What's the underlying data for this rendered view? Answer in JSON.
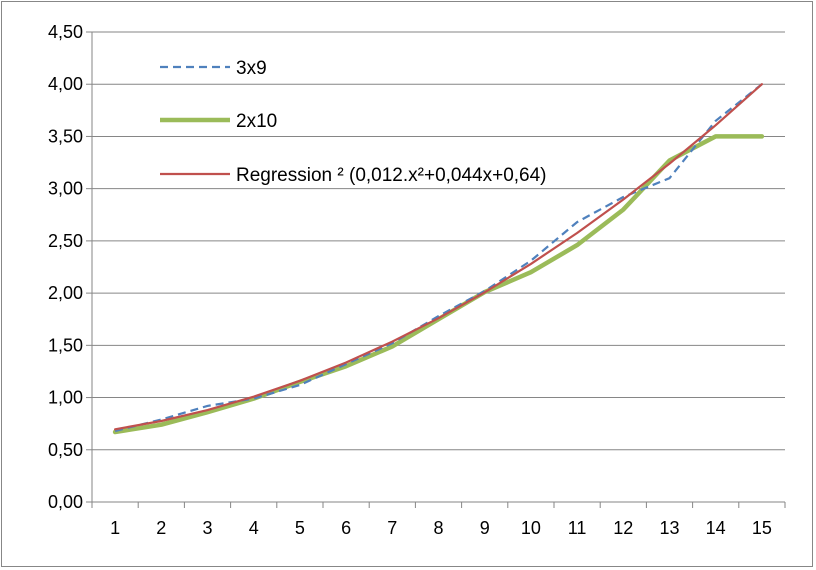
{
  "chart_data": {
    "type": "line",
    "title": "",
    "xlabel": "",
    "ylabel": "",
    "categories": [
      "1",
      "2",
      "3",
      "4",
      "5",
      "6",
      "7",
      "8",
      "9",
      "10",
      "11",
      "12",
      "13",
      "14",
      "15"
    ],
    "ylim": [
      0,
      4.5
    ],
    "y_ticks": [
      "0,00",
      "0,50",
      "1,00",
      "1,50",
      "2,00",
      "2,50",
      "3,00",
      "3,50",
      "4,00",
      "4,50"
    ],
    "grid": "horizontal",
    "legend_position": "top-left inside",
    "series": [
      {
        "name": "3x9",
        "color": "#4F81BD",
        "style": "dashed",
        "values": [
          0.68,
          0.79,
          0.92,
          0.99,
          1.12,
          1.32,
          1.52,
          1.78,
          2.02,
          2.31,
          2.68,
          2.92,
          3.1,
          3.65,
          4.0
        ]
      },
      {
        "name": "2x10",
        "color": "#9BBB59",
        "style": "thick",
        "values": [
          0.67,
          0.74,
          0.86,
          0.99,
          1.15,
          1.3,
          1.49,
          1.75,
          2.01,
          2.2,
          2.46,
          2.8,
          3.27,
          3.5,
          3.5
        ]
      },
      {
        "name": "Regression ² (0,012.x²+0,044x+0,64)",
        "color": "#C0504D",
        "style": "solid",
        "values": [
          0.696,
          0.776,
          0.88,
          1.008,
          1.16,
          1.336,
          1.536,
          1.76,
          2.008,
          2.28,
          2.576,
          2.896,
          3.24,
          3.608,
          4.0
        ]
      }
    ]
  }
}
